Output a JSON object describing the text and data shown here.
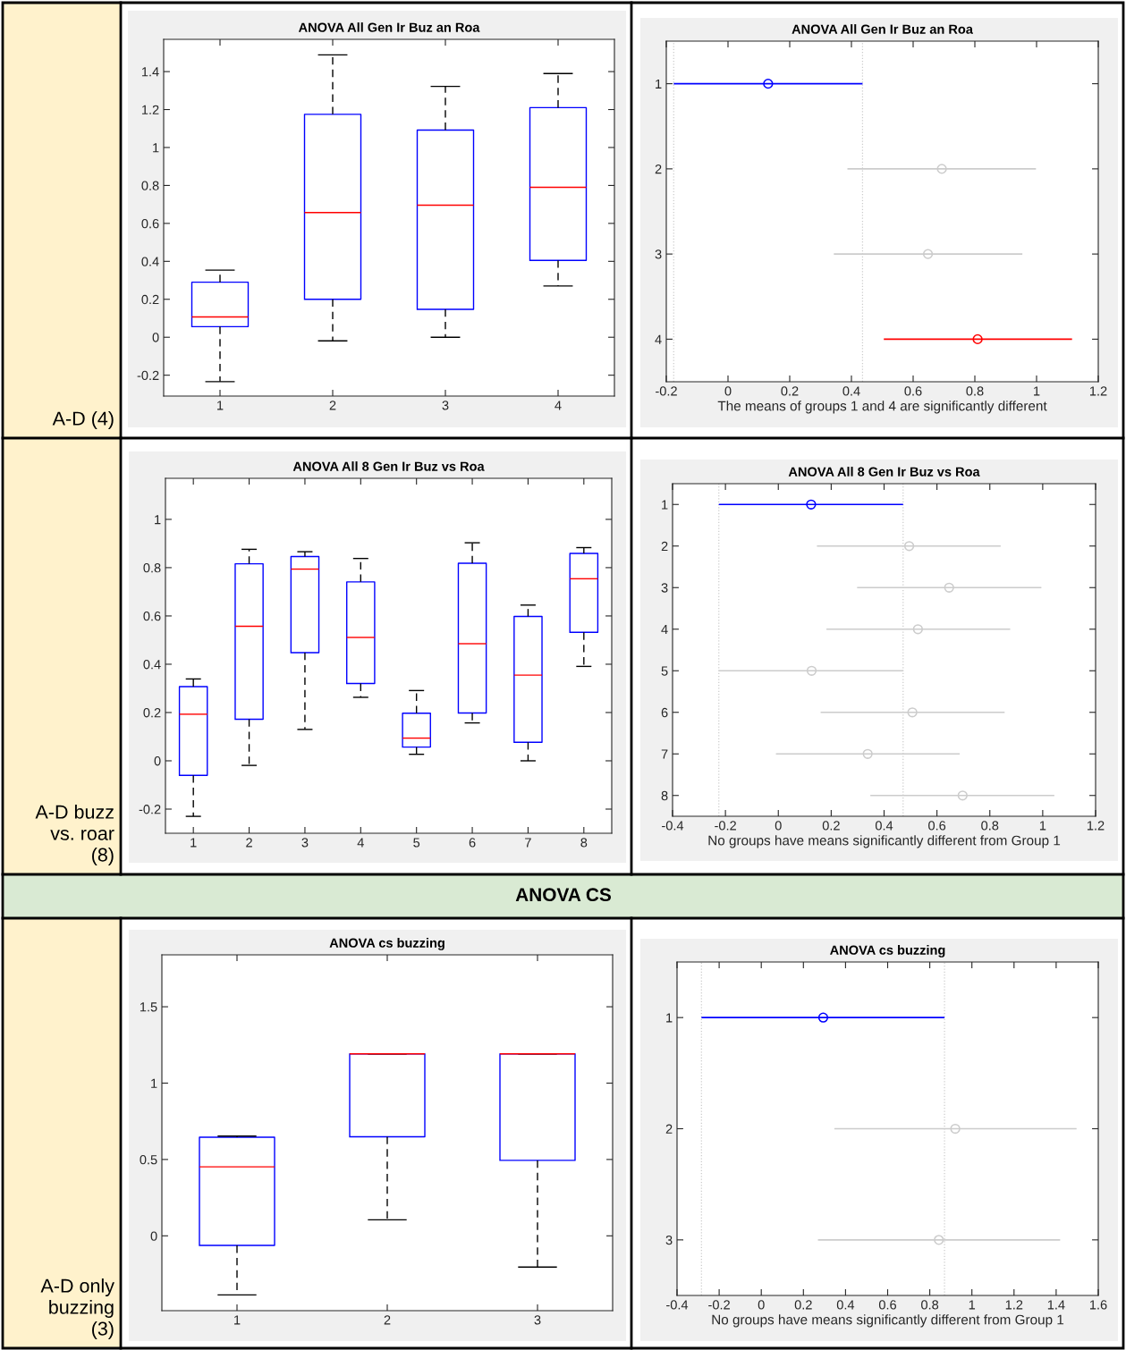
{
  "chart_data": [
    {
      "type": "other",
      "title": "ANOVA CS",
      "annotations": [
        "A-D (4)",
        "A-D buzz\nvs. roar\n(8)",
        "A-D only\nbuzzing\n(3)"
      ]
    },
    {
      "type": "box",
      "title": "ANOVA All Gen Ir Buz an Roa",
      "color": "#0000ff",
      "categories": [
        "1",
        "2",
        "3",
        "4"
      ],
      "ylim": [
        -0.31,
        1.57
      ],
      "yticks": [
        -0.2,
        0,
        0.2,
        0.4,
        0.6,
        0.8,
        1,
        1.2,
        1.4
      ],
      "boxes": [
        {
          "low": -0.234,
          "q1": 0.056,
          "median": 0.107,
          "q3": 0.29,
          "high": 0.354
        },
        {
          "low": -0.019,
          "q1": 0.2,
          "median": 0.657,
          "q3": 1.175,
          "high": 1.488
        },
        {
          "low": 0,
          "q1": 0.147,
          "median": 0.696,
          "q3": 1.092,
          "high": 1.322
        },
        {
          "low": 0.27,
          "q1": 0.405,
          "median": 0.79,
          "q3": 1.21,
          "high": 1.39
        }
      ]
    },
    {
      "type": "scatter",
      "orientation": "horizontal",
      "title": "ANOVA All Gen Ir Buz an Roa",
      "xlabel": "The means of groups 1 and 4 are significantly different",
      "marker": "circle",
      "categories": [
        "1",
        "2",
        "3",
        "4"
      ],
      "values": [
        0.13,
        0.693,
        0.648,
        0.809
      ],
      "colors": [
        "#0000ff",
        "#cccccc",
        "#cccccc",
        "#ff0000"
      ],
      "errors": [
        [
          -0.176,
          0.436
        ],
        [
          0.387,
          0.998
        ],
        [
          0.343,
          0.954
        ],
        [
          0.505,
          1.115
        ]
      ],
      "xlim": [
        -0.2,
        1.2
      ],
      "xticks": [
        -0.2,
        0,
        0.2,
        0.4,
        0.6,
        0.8,
        1,
        1.2
      ],
      "ref_lines": [
        {
          "axis": "x",
          "value": -0.176,
          "color": "#cccccc",
          "line_style": "dotted"
        },
        {
          "axis": "x",
          "value": 0.436,
          "color": "#cccccc",
          "line_style": "dotted"
        }
      ]
    },
    {
      "type": "box",
      "title": "ANOVA All 8 Gen Ir Buz vs Roa",
      "color": "#0000ff",
      "categories": [
        "1",
        "2",
        "3",
        "4",
        "5",
        "6",
        "7",
        "8"
      ],
      "ylim": [
        -0.3,
        1.17
      ],
      "yticks": [
        -0.2,
        0,
        0.2,
        0.4,
        0.6,
        0.8,
        1
      ],
      "boxes": [
        {
          "low": -0.23,
          "q1": -0.06,
          "median": 0.193,
          "q3": 0.307,
          "high": 0.339
        },
        {
          "low": -0.019,
          "q1": 0.172,
          "median": 0.557,
          "q3": 0.816,
          "high": 0.876
        },
        {
          "low": 0.13,
          "q1": 0.448,
          "median": 0.794,
          "q3": 0.846,
          "high": 0.866
        },
        {
          "low": 0.263,
          "q1": 0.32,
          "median": 0.511,
          "q3": 0.741,
          "high": 0.838
        },
        {
          "low": 0.027,
          "q1": 0.057,
          "median": 0.094,
          "q3": 0.197,
          "high": 0.291
        },
        {
          "low": 0.157,
          "q1": 0.198,
          "median": 0.485,
          "q3": 0.818,
          "high": 0.903
        },
        {
          "low": 0,
          "q1": 0.077,
          "median": 0.355,
          "q3": 0.598,
          "high": 0.645
        },
        {
          "low": 0.391,
          "q1": 0.532,
          "median": 0.754,
          "q3": 0.859,
          "high": 0.883
        }
      ]
    },
    {
      "type": "scatter",
      "orientation": "horizontal",
      "title": "ANOVA All 8 Gen Ir Buz vs Roa",
      "xlabel": "No groups have means significantly different from Group 1",
      "marker": "circle",
      "categories": [
        "1",
        "2",
        "3",
        "4",
        "5",
        "6",
        "7",
        "8"
      ],
      "values": [
        0.124,
        0.495,
        0.646,
        0.528,
        0.126,
        0.507,
        0.338,
        0.697
      ],
      "colors": [
        "#0000ff",
        "#cccccc",
        "#cccccc",
        "#cccccc",
        "#cccccc",
        "#cccccc",
        "#cccccc",
        "#cccccc"
      ],
      "errors": [
        [
          -0.225,
          0.472
        ],
        [
          0.146,
          0.841
        ],
        [
          0.298,
          0.995
        ],
        [
          0.182,
          0.877
        ],
        [
          -0.225,
          0.472
        ],
        [
          0.16,
          0.856
        ],
        [
          -0.009,
          0.686
        ],
        [
          0.348,
          1.044
        ]
      ],
      "xlim": [
        -0.4,
        1.2
      ],
      "xticks": [
        -0.4,
        -0.2,
        0,
        0.2,
        0.4,
        0.6,
        0.8,
        1,
        1.2
      ],
      "ref_lines": [
        {
          "axis": "x",
          "value": -0.225,
          "color": "#cccccc",
          "line_style": "dotted"
        },
        {
          "axis": "x",
          "value": 0.472,
          "color": "#cccccc",
          "line_style": "dotted"
        }
      ]
    },
    {
      "type": "box",
      "title": "ANOVA cs buzzing",
      "color": "#0000ff",
      "categories": [
        "1",
        "2",
        "3"
      ],
      "ylim": [
        -0.49,
        1.84
      ],
      "yticks": [
        0,
        0.5,
        1,
        1.5
      ],
      "boxes": [
        {
          "low": -0.387,
          "q1": -0.063,
          "median": 0.452,
          "q3": 0.646,
          "high": 0.653
        },
        {
          "low": 0.105,
          "q1": 0.649,
          "median": 1.192,
          "q3": 1.192,
          "high": 1.192
        },
        {
          "low": -0.205,
          "q1": 0.494,
          "median": 1.192,
          "q3": 1.192,
          "high": 1.192
        }
      ]
    },
    {
      "type": "scatter",
      "orientation": "horizontal",
      "title": "ANOVA cs buzzing",
      "xlabel": "No groups have means significantly different from Group 1",
      "marker": "circle",
      "categories": [
        "1",
        "2",
        "3"
      ],
      "values": [
        0.294,
        0.921,
        0.843
      ],
      "colors": [
        "#0000ff",
        "#cccccc",
        "#cccccc"
      ],
      "errors": [
        [
          -0.284,
          0.87
        ],
        [
          0.347,
          1.497
        ],
        [
          0.269,
          1.419
        ]
      ],
      "xlim": [
        -0.4,
        1.6
      ],
      "xticks": [
        -0.4,
        -0.2,
        0,
        0.2,
        0.4,
        0.6,
        0.8,
        1,
        1.2,
        1.4,
        1.6
      ],
      "ref_lines": [
        {
          "axis": "x",
          "value": -0.284,
          "color": "#cccccc",
          "line_style": "dotted"
        },
        {
          "axis": "x",
          "value": 0.87,
          "color": "#cccccc",
          "line_style": "dotted"
        }
      ]
    }
  ]
}
